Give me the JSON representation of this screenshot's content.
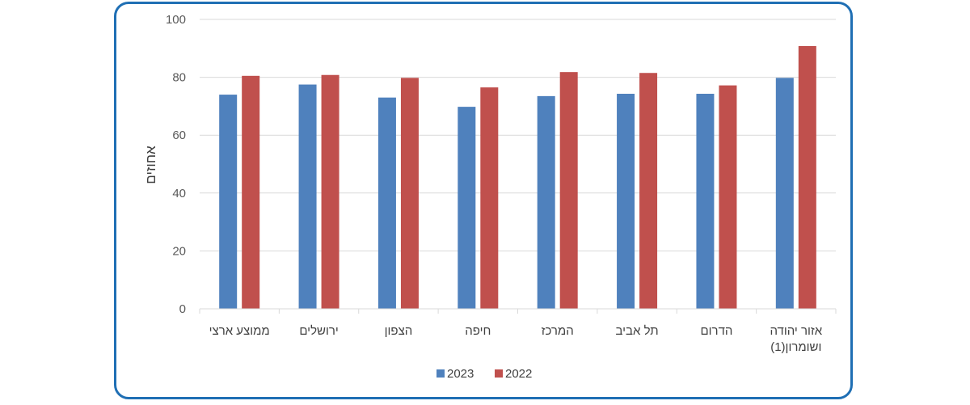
{
  "chart_data": {
    "type": "bar",
    "ylabel": "אחוזים",
    "ylim": [
      0,
      100
    ],
    "yticks": [
      0,
      20,
      40,
      60,
      80,
      100
    ],
    "grid": true,
    "legend_position": "bottom",
    "categories": [
      [
        "ממוצע ארצי"
      ],
      [
        "ירושלים"
      ],
      [
        "הצפון"
      ],
      [
        "חיפה"
      ],
      [
        "המרכז"
      ],
      [
        "תל אביב"
      ],
      [
        "הדרום"
      ],
      [
        "אזור יהודה",
        "ושומרון(1)"
      ]
    ],
    "series": [
      {
        "name": "2023",
        "color": "#4f81bd",
        "values": [
          74,
          77.5,
          73,
          69.8,
          73.5,
          74.3,
          74.3,
          79.8
        ]
      },
      {
        "name": "2022",
        "color": "#c0504d",
        "values": [
          80.5,
          80.8,
          79.8,
          76.5,
          81.8,
          81.5,
          77.2,
          90.8
        ]
      }
    ]
  }
}
